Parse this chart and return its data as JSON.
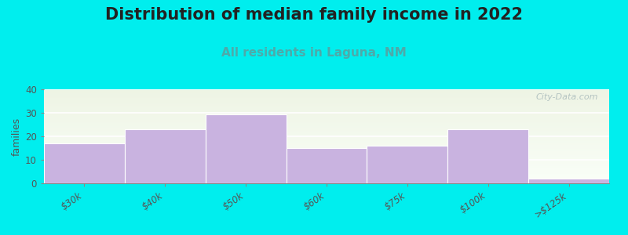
{
  "title": "Distribution of median family income in 2022",
  "subtitle": "All residents in Laguna, NM",
  "categories": [
    "$30k",
    "$40k",
    "$50k",
    "$60k",
    "$75k",
    "$100k",
    ">$125k"
  ],
  "values": [
    17,
    23,
    29.5,
    15,
    16,
    23,
    2
  ],
  "bar_color": "#C9B3E0",
  "bar_edge_color": "#C9B3E0",
  "background_color": "#00EEEE",
  "plot_bg_top": "#EEF4E4",
  "plot_bg_bottom": "#FAFFF8",
  "ylabel": "families",
  "ylim": [
    0,
    40
  ],
  "yticks": [
    0,
    10,
    20,
    30,
    40
  ],
  "title_fontsize": 15,
  "subtitle_fontsize": 11,
  "subtitle_color": "#4DAAAA",
  "watermark_text": "City-Data.com",
  "watermark_color": "#AABBBB",
  "tick_label_fontsize": 8.5,
  "tick_label_color": "#555555"
}
